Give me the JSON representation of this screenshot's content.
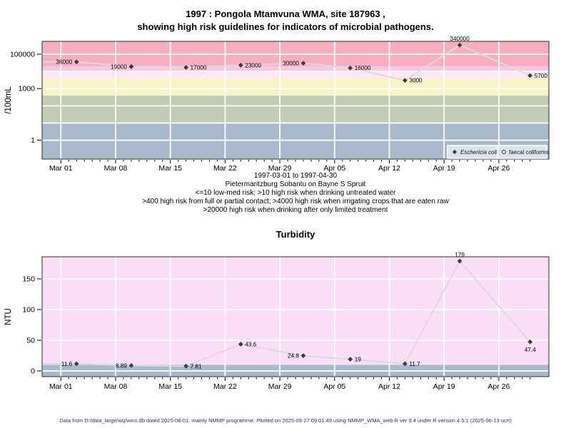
{
  "page": {
    "title_line1": "1997 : Pongola Mtamvuna WMA, site 187963 ,",
    "title_line2": "showing high risk guidelines for indicators of microbial pathogens.",
    "footer": "Data from D:/data_large/wq/wms.db dated 2025-08-01, mainly NMMP programme. Plotted on 2025-09-27 09:01:49 using NMMP_WMA_web.R ver 9.4 under R version 4.5.1 (2025-06-13 ucrt)"
  },
  "colors": {
    "line": "#DBDBDB",
    "marker": "#3C3C3C",
    "grid": "#FFFFFF",
    "legend_bg": "#DCE3EE",
    "plot_border": "#2B2B2B",
    "footer_text": "#2E2E6E"
  },
  "chart_data": [
    {
      "id": "microbial-indicators",
      "type": "line",
      "title": "",
      "ylabel": "/100mL",
      "yscale": "log",
      "ylim": [
        0.08,
        560000
      ],
      "yticks": [
        1,
        1000,
        100000
      ],
      "grid_y": [
        1,
        10,
        100,
        1000,
        10000,
        100000
      ],
      "xlim_days": [
        -2.4,
        62.4
      ],
      "x_ticks": [
        {
          "day": 0,
          "label": "Mar 01"
        },
        {
          "day": 7,
          "label": "Mar 08"
        },
        {
          "day": 14,
          "label": "Mar 15"
        },
        {
          "day": 21,
          "label": "Mar 22"
        },
        {
          "day": 28,
          "label": "Mar 29"
        },
        {
          "day": 35,
          "label": "Apr 05"
        },
        {
          "day": 42,
          "label": "Apr 12"
        },
        {
          "day": 49,
          "label": "Apr 19"
        },
        {
          "day": 56,
          "label": "Apr 26"
        }
      ],
      "bands": [
        {
          "name": "low-med-risk-le-10",
          "range": [
            0.08,
            10
          ],
          "color": "#A8B8CD"
        },
        {
          "name": "risk-10-400",
          "range": [
            10,
            400
          ],
          "color": "#C3CCB5"
        },
        {
          "name": "risk-400-4000",
          "range": [
            400,
            4000
          ],
          "color": "#FAF3C8"
        },
        {
          "name": "risk-4000-10000",
          "range": [
            4000,
            10000
          ],
          "color": "#FCE6FA"
        },
        {
          "name": "risk-10000-20000",
          "range": [
            10000,
            20000
          ],
          "color": "#F8C7E2"
        },
        {
          "name": "high-risk-gt-20000",
          "range": [
            20000,
            560000
          ],
          "color": "#F9AEBF"
        }
      ],
      "series": [
        {
          "name": "Eschericia coli",
          "marker": "filled-diamond",
          "enters_from_left_at": 36000,
          "points": [
            {
              "day": 2,
              "value": 36000,
              "label": "36000",
              "label_pos": "left"
            },
            {
              "day": 9,
              "value": 19000,
              "label": "19000",
              "label_pos": "left"
            },
            {
              "day": 16,
              "value": 17000,
              "label": "17000",
              "label_pos": "right"
            },
            {
              "day": 23,
              "value": 23000,
              "label": "23000",
              "label_pos": "right"
            },
            {
              "day": 31,
              "value": 30000,
              "label": "30000",
              "label_pos": "left"
            },
            {
              "day": 37,
              "value": 16000,
              "label": "16000",
              "label_pos": "right"
            },
            {
              "day": 44,
              "value": 3000,
              "label": "3000",
              "label_pos": "right"
            },
            {
              "day": 51,
              "value": 340000,
              "label": "340000",
              "label_pos": "above"
            },
            {
              "day": 60,
              "value": 5700,
              "label": "5700",
              "label_pos": "right"
            }
          ]
        }
      ],
      "legend": [
        {
          "marker": "filled-diamond",
          "label": "Eschericia coli",
          "italic": true
        },
        {
          "marker": "open-circle",
          "label": "faecal coliforms",
          "italic": false
        }
      ],
      "subtitle_lines": [
        "1997-03-01 to 1997-04-30",
        "Pietermaritzburg Sobantu on Bayne S Spruit",
        "<=10 low-med risk; >10 high risk when drinking untreated water",
        ">400 high risk from full or partial contact; >4000 high risk when irrigating crops that are eaten raw",
        ">20000 high risk when drinking after only limited treatment"
      ]
    },
    {
      "id": "turbidity",
      "type": "line",
      "title": "Turbidity",
      "ylabel": "NTU",
      "yscale": "linear",
      "ylim": [
        -9.3,
        186
      ],
      "yticks": [
        0,
        50,
        100,
        150
      ],
      "grid_y": [
        0,
        50,
        100,
        150
      ],
      "xlim_days": [
        -2.4,
        62.4
      ],
      "x_ticks": [
        {
          "day": 0,
          "label": "Mar 01"
        },
        {
          "day": 7,
          "label": "Mar 08"
        },
        {
          "day": 14,
          "label": "Mar 15"
        },
        {
          "day": 21,
          "label": "Mar 22"
        },
        {
          "day": 28,
          "label": "Mar 29"
        },
        {
          "day": 35,
          "label": "Apr 05"
        },
        {
          "day": 42,
          "label": "Apr 12"
        },
        {
          "day": 49,
          "label": "Apr 19"
        },
        {
          "day": 56,
          "label": "Apr 26"
        }
      ],
      "bands": [
        {
          "name": "turbidity-le-10",
          "range": [
            -9.3,
            10
          ],
          "color": "#A8B8CD"
        },
        {
          "name": "turbidity-gt-10",
          "range": [
            10,
            186
          ],
          "color": "#FADDF7"
        }
      ],
      "series": [
        {
          "name": "Turbidity",
          "marker": "filled-diamond",
          "enters_from_left_at": 11.6,
          "points": [
            {
              "day": 2,
              "value": 11.6,
              "label": "11.6",
              "label_pos": "left"
            },
            {
              "day": 9,
              "value": 8.89,
              "label": "8.89",
              "label_pos": "left"
            },
            {
              "day": 16,
              "value": 7.81,
              "label": "7.81",
              "label_pos": "right"
            },
            {
              "day": 23,
              "value": 43.6,
              "label": "43.6",
              "label_pos": "right"
            },
            {
              "day": 31,
              "value": 24.8,
              "label": "24.8",
              "label_pos": "left"
            },
            {
              "day": 37,
              "value": 19,
              "label": "19",
              "label_pos": "right"
            },
            {
              "day": 44,
              "value": 11.7,
              "label": "11.7",
              "label_pos": "right"
            },
            {
              "day": 51,
              "value": 179,
              "label": "179",
              "label_pos": "above"
            },
            {
              "day": 60,
              "value": 47.4,
              "label": "47.4",
              "label_pos": "below"
            }
          ]
        }
      ],
      "legend": []
    }
  ]
}
